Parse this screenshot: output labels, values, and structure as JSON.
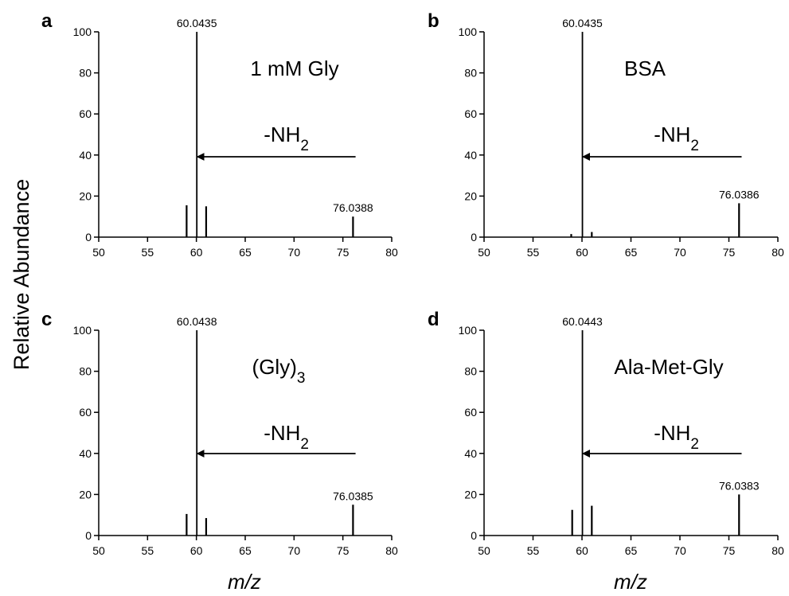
{
  "ylabel": "Relative Abundance",
  "xlabel": "m/z",
  "annotation_main": "-NH",
  "annotation_sub": "2",
  "chart_data": [
    {
      "type": "bar",
      "panel": "a",
      "title_main": "1 mM Gly",
      "title_sub": "",
      "xlim": [
        50,
        80
      ],
      "ylim": [
        0,
        100
      ],
      "xticks": [
        50,
        55,
        60,
        65,
        70,
        75,
        80
      ],
      "yticks": [
        0,
        20,
        40,
        60,
        80,
        100
      ],
      "peaks": [
        {
          "x": 59.0,
          "y": 15.5,
          "label": ""
        },
        {
          "x": 60.0435,
          "y": 100,
          "label": "60.0435"
        },
        {
          "x": 61.0,
          "y": 15.0,
          "label": ""
        },
        {
          "x": 76.0388,
          "y": 10,
          "label": "76.0388"
        }
      ]
    },
    {
      "type": "bar",
      "panel": "b",
      "title_main": "BSA",
      "title_sub": "",
      "xlim": [
        50,
        80
      ],
      "ylim": [
        0,
        100
      ],
      "xticks": [
        50,
        55,
        60,
        65,
        70,
        75,
        80
      ],
      "yticks": [
        0,
        20,
        40,
        60,
        80,
        100
      ],
      "peaks": [
        {
          "x": 58.9,
          "y": 1.5,
          "label": ""
        },
        {
          "x": 60.0435,
          "y": 100,
          "label": "60.0435"
        },
        {
          "x": 61.0,
          "y": 2.5,
          "label": ""
        },
        {
          "x": 76.0386,
          "y": 16.5,
          "label": "76.0386"
        }
      ]
    },
    {
      "type": "bar",
      "panel": "c",
      "title_main": "(Gly)",
      "title_sub": "3",
      "xlim": [
        50,
        80
      ],
      "ylim": [
        0,
        100
      ],
      "xticks": [
        50,
        55,
        60,
        65,
        70,
        75,
        80
      ],
      "yticks": [
        0,
        20,
        40,
        60,
        80,
        100
      ],
      "peaks": [
        {
          "x": 59.0,
          "y": 10.5,
          "label": ""
        },
        {
          "x": 60.0438,
          "y": 100,
          "label": "60.0438"
        },
        {
          "x": 61.0,
          "y": 8.5,
          "label": ""
        },
        {
          "x": 76.0385,
          "y": 15,
          "label": "76.0385"
        }
      ]
    },
    {
      "type": "bar",
      "panel": "d",
      "title_main": "Ala-Met-Gly",
      "title_sub": "",
      "xlim": [
        50,
        80
      ],
      "ylim": [
        0,
        100
      ],
      "xticks": [
        50,
        55,
        60,
        65,
        70,
        75,
        80
      ],
      "yticks": [
        0,
        20,
        40,
        60,
        80,
        100
      ],
      "peaks": [
        {
          "x": 59.0,
          "y": 12.5,
          "label": ""
        },
        {
          "x": 60.0443,
          "y": 100,
          "label": "60.0443"
        },
        {
          "x": 61.0,
          "y": 14.5,
          "label": ""
        },
        {
          "x": 76.0383,
          "y": 20,
          "label": "76.0383"
        }
      ]
    }
  ]
}
